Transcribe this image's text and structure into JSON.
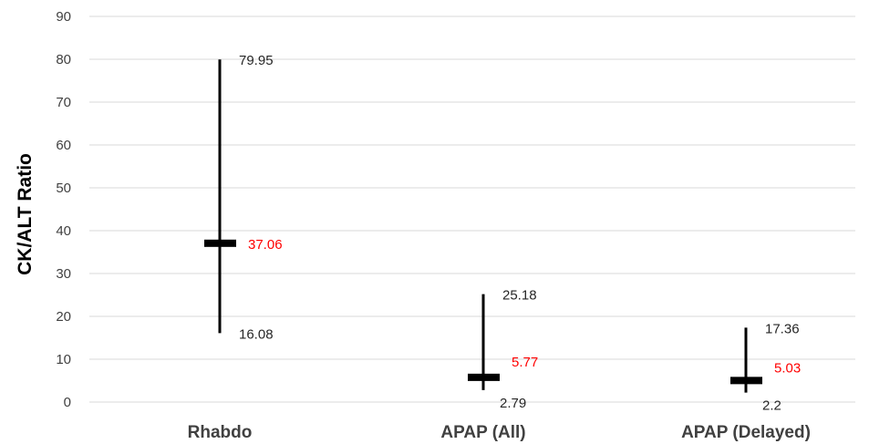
{
  "chart_data": {
    "type": "hi-lo-median",
    "ylabel": "CK/ALT Ratio",
    "ylim": [
      0,
      90
    ],
    "yticks": [
      "0",
      "10",
      "20",
      "30",
      "40",
      "50",
      "60",
      "70",
      "80",
      "90"
    ],
    "grid": true,
    "categories": [
      "Rhabdo",
      "APAP (All)",
      "APAP (Delayed)"
    ],
    "high": [
      79.95,
      25.18,
      17.36
    ],
    "median": [
      37.06,
      5.77,
      5.03
    ],
    "low": [
      16.08,
      2.79,
      2.2
    ],
    "high_labels": [
      "79.95",
      "25.18",
      "17.36"
    ],
    "median_labels": [
      "37.06",
      "5.77",
      "5.03"
    ],
    "low_labels": [
      "16.08",
      "2.79",
      "2.2"
    ],
    "colors": {
      "range": "#000000",
      "label": "#262626",
      "median_label": "#ff0000",
      "grid": "#d9d9d9"
    }
  }
}
